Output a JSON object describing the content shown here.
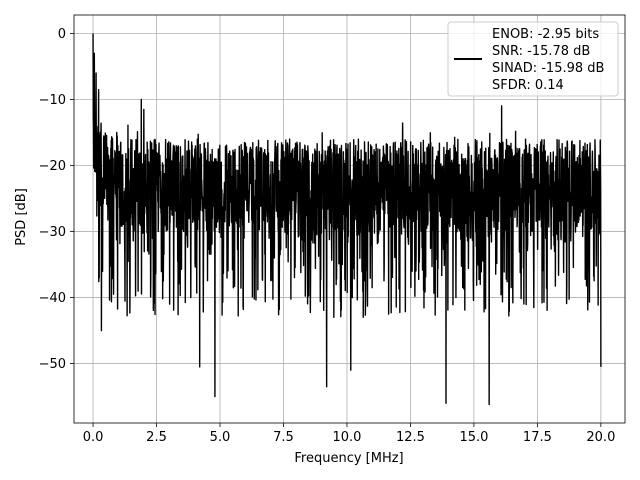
{
  "chart_data": {
    "type": "line",
    "title": "",
    "xlabel": "Frequency [MHz]",
    "ylabel": "PSD [dB]",
    "xlim": [
      -0.75,
      20.95
    ],
    "ylim": [
      -59,
      2.8
    ],
    "xticks": [
      0.0,
      2.5,
      5.0,
      7.5,
      10.0,
      12.5,
      15.0,
      17.5,
      20.0
    ],
    "xtick_labels": [
      "0.0",
      "2.5",
      "5.0",
      "7.5",
      "10.0",
      "12.5",
      "15.0",
      "17.5",
      "20.0"
    ],
    "yticks": [
      0,
      -10,
      -20,
      -30,
      -40,
      -50
    ],
    "ytick_labels": [
      "0",
      "−10",
      "−20",
      "−30",
      "−40",
      "−50"
    ],
    "grid": true,
    "legend_position": "top-right",
    "legend": {
      "lines": [
        "ENOB: -2.95 bits",
        "SNR: -15.78 dB",
        "SINAD: -15.98 dB",
        "SFDR: 0.14"
      ]
    },
    "series": [
      {
        "color": "#000000",
        "x_range": [
          0.0,
          20.0
        ],
        "approx_mean_db": -25.5,
        "noise_band_db": [
          -35,
          -16
        ],
        "peak": {
          "x": 0.0,
          "y": 0.0
        },
        "notable_spikes": [
          {
            "x": 0.05,
            "y": -3.0
          },
          {
            "x": 0.12,
            "y": -6.0
          },
          {
            "x": 0.22,
            "y": -8.5
          },
          {
            "x": 1.9,
            "y": -10.0
          },
          {
            "x": 2.0,
            "y": -11.5
          },
          {
            "x": 0.33,
            "y": -45.0
          },
          {
            "x": 4.2,
            "y": -50.5
          },
          {
            "x": 4.8,
            "y": -55.0
          },
          {
            "x": 9.2,
            "y": -53.5
          },
          {
            "x": 10.15,
            "y": -51.0
          },
          {
            "x": 13.9,
            "y": -56.0
          },
          {
            "x": 15.6,
            "y": -56.2
          },
          {
            "x": 20.0,
            "y": -50.5
          }
        ]
      }
    ]
  }
}
